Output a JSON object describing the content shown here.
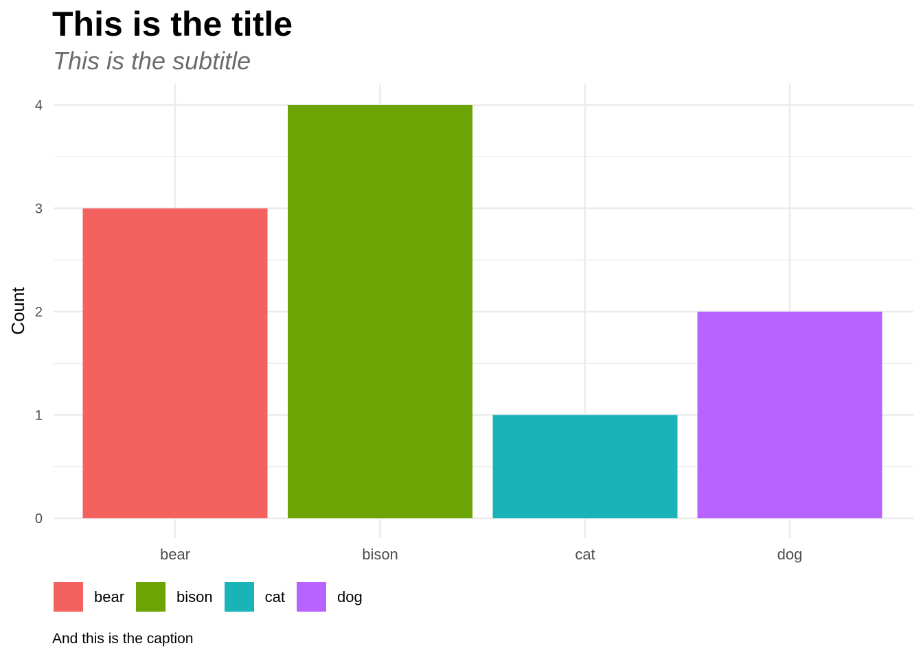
{
  "colors": {
    "bear": "#F46260",
    "bison": "#6CA503",
    "cat": "#19B3B8",
    "dog": "#B862FF",
    "grid": "#EBEBEB",
    "tick_text": "#4D4D4D"
  },
  "chart_data": {
    "type": "bar",
    "title": "This is the title",
    "subtitle": "This is the subtitle",
    "caption": "And this is the caption",
    "xlabel": "",
    "ylabel": "Count",
    "categories": [
      "bear",
      "bison",
      "cat",
      "dog"
    ],
    "values": [
      3,
      4,
      1,
      2
    ],
    "ylim": [
      0,
      4
    ],
    "yticks": [
      "0",
      "1",
      "2",
      "3",
      "4"
    ],
    "grid": true,
    "legend": {
      "position": "bottom",
      "entries": [
        "bear",
        "bison",
        "cat",
        "dog"
      ]
    }
  }
}
